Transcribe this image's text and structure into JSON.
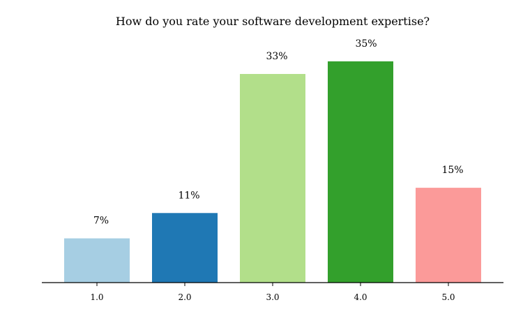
{
  "chart_data": {
    "type": "bar",
    "title": "How do you rate your software development expertise?",
    "xlabel": "",
    "ylabel": "",
    "categories": [
      "1.0",
      "2.0",
      "3.0",
      "4.0",
      "5.0"
    ],
    "values": [
      7,
      11,
      33,
      35,
      15
    ],
    "value_labels": [
      "7%",
      "11%",
      "33%",
      "35%",
      "15%"
    ],
    "colors": [
      "#a6cee3",
      "#1f78b4",
      "#b2df8a",
      "#33a02c",
      "#fb9a99"
    ],
    "ylim": [
      0,
      35
    ],
    "grid": false,
    "legend": "none"
  }
}
